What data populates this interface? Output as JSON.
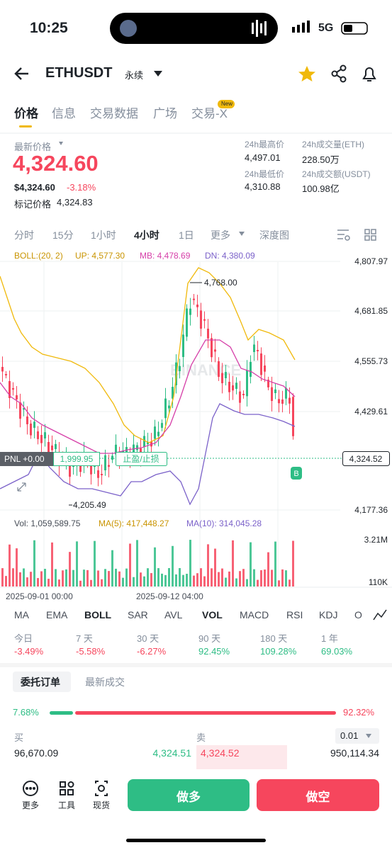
{
  "status": {
    "time": "10:25",
    "network": "5G"
  },
  "header": {
    "symbol": "ETHUSDT",
    "tag": "永续"
  },
  "tabs": {
    "items": [
      "价格",
      "信息",
      "交易数据",
      "广场",
      "交易-X"
    ],
    "badge": "New"
  },
  "price": {
    "label": "最新价格",
    "last": "4,324.60",
    "usd": "$4,324.60",
    "change": "-3.18%",
    "mark_label": "标记价格",
    "mark": "4,324.83"
  },
  "stats": [
    {
      "label": "24h最高价",
      "value": "4,497.01"
    },
    {
      "label": "24h成交量(ETH)",
      "value": "228.50万"
    },
    {
      "label": "24h最低价",
      "value": "4,310.88"
    },
    {
      "label": "24h成交额(USDT)",
      "value": "100.98亿"
    }
  ],
  "intervals": {
    "items": [
      "分时",
      "15分",
      "1小时",
      "4小时",
      "1日",
      "更多",
      "深度图"
    ]
  },
  "boll": {
    "name": "BOLL:(20, 2)",
    "up": "UP: 4,577.30",
    "mb": "MB: 4,478.69",
    "dn": "DN: 4,380.09"
  },
  "price_axis": {
    "labels": [
      "4,807.97",
      "4,681.85",
      "4,555.73",
      "4,429.61",
      "4,177.36"
    ],
    "current": "4,324.52"
  },
  "annotations": {
    "high": "4,768.00",
    "low": "4,205.49",
    "pnl": "PNL +0.00",
    "qty": "1,999.95",
    "tpsl": "止盈/止损",
    "marker": "B"
  },
  "volume": {
    "vol": "Vol: 1,059,589.75",
    "ma5": "MA(5): 417,448.27",
    "ma10": "MA(10): 314,045.28",
    "axis": [
      "3.21M",
      "110K"
    ]
  },
  "dates": [
    "2025-09-01 00:00",
    "2025-09-12 04:00"
  ],
  "indicators": [
    "MA",
    "EMA",
    "BOLL",
    "SAR",
    "AVL",
    "VOL",
    "MACD",
    "RSI",
    "KDJ",
    "O"
  ],
  "performance": [
    {
      "label": "今日",
      "value": "-3.49%"
    },
    {
      "label": "7 天",
      "value": "-5.58%"
    },
    {
      "label": "30 天",
      "value": "-6.27%"
    },
    {
      "label": "90 天",
      "value": "92.45%"
    },
    {
      "label": "180 天",
      "value": "109.28%"
    },
    {
      "label": "1 年",
      "value": "69.03%"
    }
  ],
  "orders": {
    "tabs": [
      "委托订单",
      "最新成交"
    ],
    "buy_pct": "7.68%",
    "sell_pct": "92.32%",
    "buy": "买",
    "sell": "卖",
    "step": "0.01",
    "row": [
      "96,670.09",
      "4,324.51",
      "4,324.52",
      "950,114.34"
    ]
  },
  "bottom": {
    "items": [
      "更多",
      "工具",
      "现货"
    ],
    "long": "做多",
    "short": "做空"
  }
}
